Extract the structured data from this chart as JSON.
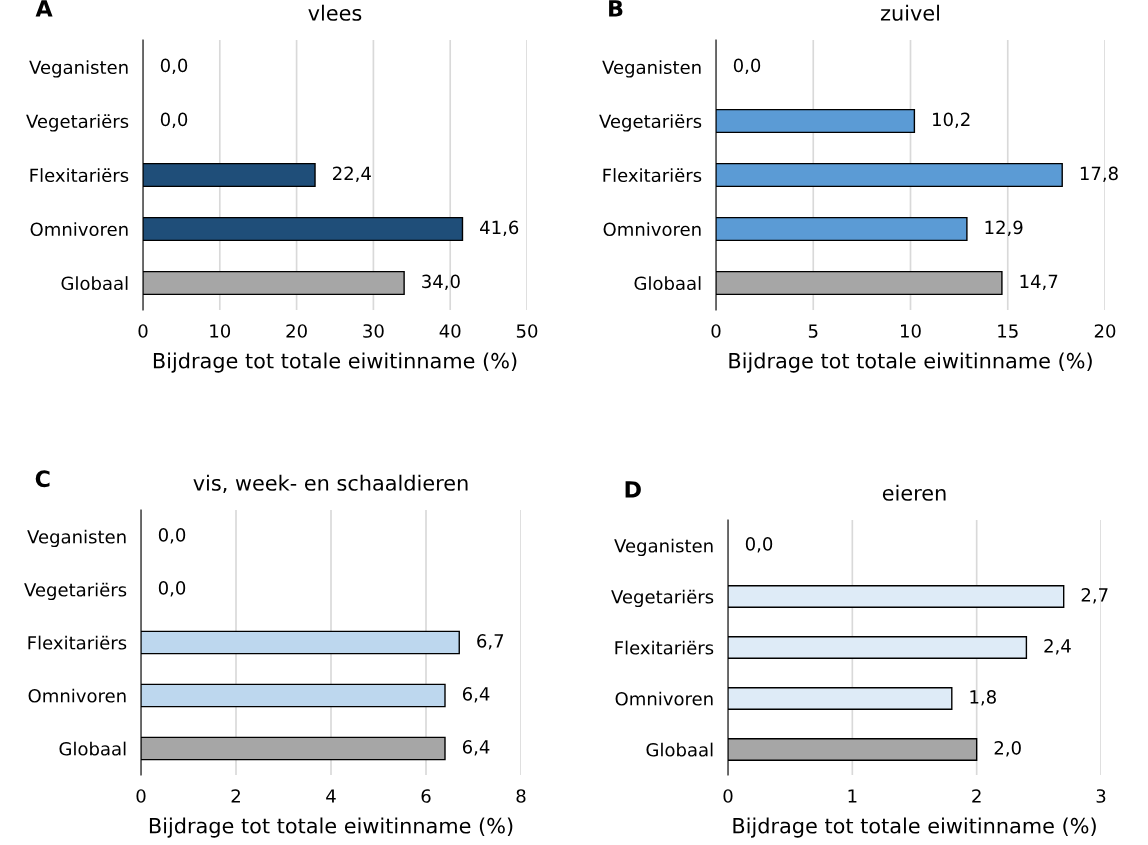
{
  "chart_data": [
    {
      "type": "bar",
      "orientation": "horizontal",
      "title": "vlees",
      "annotations": [
        "A"
      ],
      "categories": [
        "Veganisten",
        "Vegetariërs",
        "Flexitariërs",
        "Omnivoren",
        "Globaal"
      ],
      "values": [
        0.0,
        0.0,
        22.4,
        41.6,
        34.0
      ],
      "value_labels": [
        "0,0",
        "0,0",
        "22,4",
        "41,6",
        "34,0"
      ],
      "colors": [
        "#1f4e79",
        "#1f4e79",
        "#1f4e79",
        "#1f4e79",
        "#a6a6a6"
      ],
      "xlabel": "Bijdrage tot totale eiwitinname (%)",
      "xlim": [
        0,
        50
      ],
      "xticks": [
        0,
        10,
        20,
        30,
        40,
        50
      ],
      "grid": "x",
      "legend": false
    },
    {
      "type": "bar",
      "orientation": "horizontal",
      "title": "zuivel",
      "annotations": [
        "B"
      ],
      "categories": [
        "Veganisten",
        "Vegetariërs",
        "Flexitariërs",
        "Omnivoren",
        "Globaal"
      ],
      "values": [
        0.0,
        10.2,
        17.8,
        12.9,
        14.7
      ],
      "value_labels": [
        "0,0",
        "10,2",
        "17,8",
        "12,9",
        "14,7"
      ],
      "colors": [
        "#5b9bd5",
        "#5b9bd5",
        "#5b9bd5",
        "#5b9bd5",
        "#a6a6a6"
      ],
      "xlabel": "Bijdrage tot totale eiwitinname (%)",
      "xlim": [
        0,
        20
      ],
      "xticks": [
        0,
        5,
        10,
        15,
        20
      ],
      "grid": "x",
      "legend": false
    },
    {
      "type": "bar",
      "orientation": "horizontal",
      "title": "vis, week- en schaaldieren",
      "annotations": [
        "C"
      ],
      "categories": [
        "Veganisten",
        "Vegetariërs",
        "Flexitariërs",
        "Omnivoren",
        "Globaal"
      ],
      "values": [
        0.0,
        0.0,
        6.7,
        6.4,
        6.4
      ],
      "value_labels": [
        "0,0",
        "0,0",
        "6,7",
        "6,4",
        "6,4"
      ],
      "colors": [
        "#bdd7ee",
        "#bdd7ee",
        "#bdd7ee",
        "#bdd7ee",
        "#a6a6a6"
      ],
      "xlabel": "Bijdrage tot totale eiwitinname (%)",
      "xlim": [
        0,
        8
      ],
      "xticks": [
        0,
        2,
        4,
        6,
        8
      ],
      "grid": "x",
      "legend": false
    },
    {
      "type": "bar",
      "orientation": "horizontal",
      "title": "eieren",
      "annotations": [
        "D"
      ],
      "categories": [
        "Veganisten",
        "Vegetariërs",
        "Flexitariërs",
        "Omnivoren",
        "Globaal"
      ],
      "values": [
        0.0,
        2.7,
        2.4,
        1.8,
        2.0
      ],
      "value_labels": [
        "0,0",
        "2,7",
        "2,4",
        "1,8",
        "2,0"
      ],
      "colors": [
        "#deebf7",
        "#deebf7",
        "#deebf7",
        "#deebf7",
        "#a6a6a6"
      ],
      "xlabel": "Bijdrage tot totale eiwitinname (%)",
      "xlim": [
        0,
        3
      ],
      "xticks": [
        0,
        1,
        2,
        3
      ],
      "grid": "x",
      "legend": false
    }
  ]
}
